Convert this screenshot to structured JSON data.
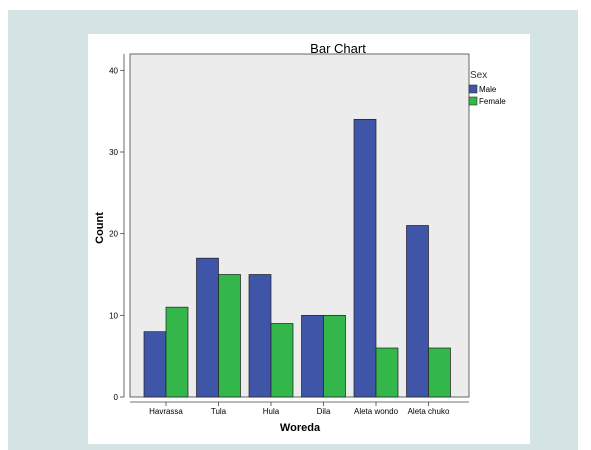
{
  "chart_data": {
    "type": "bar",
    "title": "Bar Chart",
    "xlabel": "Woreda",
    "ylabel": "Count",
    "categories": [
      "Havrassa",
      "Tula",
      "Hula",
      "Dila",
      "Aleta wondo",
      "Aleta chuko"
    ],
    "series": [
      {
        "name": "Male",
        "color": "#3f55a8",
        "values": [
          8,
          17,
          15,
          10,
          34,
          21
        ]
      },
      {
        "name": "Female",
        "color": "#33b64a",
        "values": [
          11,
          15,
          9,
          10,
          6,
          6
        ]
      }
    ],
    "ylim": [
      0,
      42
    ],
    "yticks": [
      0,
      10,
      20,
      30,
      40
    ],
    "legend": {
      "title": "Sex",
      "position": "top-right"
    },
    "plot_background": "#ececec",
    "grid": false
  }
}
